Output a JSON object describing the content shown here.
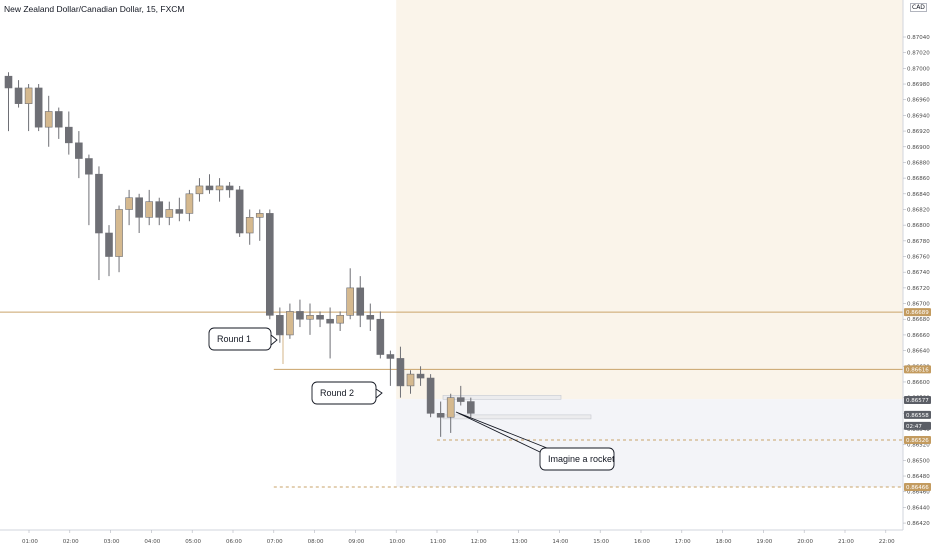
{
  "header": {
    "title": "New Zealand Dollar/Canadian Dollar, 15, FXCM"
  },
  "price_axis": {
    "currency": "CAD"
  },
  "colors": {
    "bull": "#d5b98f",
    "bear": "#6e6f75",
    "wick": "#6e6f75",
    "level": "#c9a36a",
    "zone_upper": "#faf4ea",
    "zone_lower": "#f3f4f8",
    "badge_gold": "#c39b5f",
    "badge_gray": "#5b5e66"
  },
  "chart_data": {
    "type": "candlestick",
    "title": "New Zealand Dollar/Canadian Dollar, 15, FXCM",
    "ylim": [
      0.8641,
      0.8708
    ],
    "y_ticks": [
      "0.87040",
      "0.87020",
      "0.87000",
      "0.86980",
      "0.86960",
      "0.86940",
      "0.86920",
      "0.86900",
      "0.86880",
      "0.86860",
      "0.86840",
      "0.86820",
      "0.86800",
      "0.86780",
      "0.86760",
      "0.86740",
      "0.86720",
      "0.86700",
      "0.86680",
      "0.86660",
      "0.86640",
      "0.86620",
      "0.86600",
      "0.86580",
      "0.86560",
      "0.86540",
      "0.86520",
      "0.86500",
      "0.86480",
      "0.86460",
      "0.86440",
      "0.86420"
    ],
    "x_ticks": [
      "01:00",
      "02:00",
      "03:00",
      "04:00",
      "05:00",
      "06:00",
      "07:00",
      "08:00",
      "09:00",
      "10:00",
      "11:00",
      "12:00",
      "13:00",
      "14:00",
      "15:00",
      "16:00",
      "17:00",
      "18:00",
      "19:00",
      "20:00",
      "21:00",
      "22:00"
    ],
    "candles": [
      {
        "o": 0.8699,
        "h": 0.86995,
        "l": 0.8692,
        "c": 0.86975
      },
      {
        "o": 0.86975,
        "h": 0.86985,
        "l": 0.8695,
        "c": 0.86955
      },
      {
        "o": 0.86955,
        "h": 0.8698,
        "l": 0.8692,
        "c": 0.86975
      },
      {
        "o": 0.86975,
        "h": 0.8698,
        "l": 0.8692,
        "c": 0.86925
      },
      {
        "o": 0.86925,
        "h": 0.86965,
        "l": 0.869,
        "c": 0.86945
      },
      {
        "o": 0.86945,
        "h": 0.8695,
        "l": 0.8691,
        "c": 0.86925
      },
      {
        "o": 0.86925,
        "h": 0.86945,
        "l": 0.8689,
        "c": 0.86905
      },
      {
        "o": 0.86905,
        "h": 0.8692,
        "l": 0.8686,
        "c": 0.86885
      },
      {
        "o": 0.86885,
        "h": 0.8689,
        "l": 0.868,
        "c": 0.86865
      },
      {
        "o": 0.86865,
        "h": 0.86875,
        "l": 0.8673,
        "c": 0.8679
      },
      {
        "o": 0.8679,
        "h": 0.868,
        "l": 0.86735,
        "c": 0.8676
      },
      {
        "o": 0.8676,
        "h": 0.86825,
        "l": 0.8674,
        "c": 0.8682
      },
      {
        "o": 0.8682,
        "h": 0.86845,
        "l": 0.868,
        "c": 0.86835
      },
      {
        "o": 0.86835,
        "h": 0.8684,
        "l": 0.8679,
        "c": 0.8681
      },
      {
        "o": 0.8681,
        "h": 0.86845,
        "l": 0.868,
        "c": 0.8683
      },
      {
        "o": 0.8683,
        "h": 0.86835,
        "l": 0.868,
        "c": 0.8681
      },
      {
        "o": 0.8681,
        "h": 0.8683,
        "l": 0.868,
        "c": 0.8682
      },
      {
        "o": 0.8682,
        "h": 0.86835,
        "l": 0.86805,
        "c": 0.86815
      },
      {
        "o": 0.86815,
        "h": 0.86845,
        "l": 0.86805,
        "c": 0.8684
      },
      {
        "o": 0.8684,
        "h": 0.8686,
        "l": 0.8683,
        "c": 0.8685
      },
      {
        "o": 0.8685,
        "h": 0.86865,
        "l": 0.8684,
        "c": 0.86845
      },
      {
        "o": 0.86845,
        "h": 0.8686,
        "l": 0.8683,
        "c": 0.8685
      },
      {
        "o": 0.8685,
        "h": 0.86855,
        "l": 0.86835,
        "c": 0.86845
      },
      {
        "o": 0.86845,
        "h": 0.8685,
        "l": 0.86785,
        "c": 0.8679
      },
      {
        "o": 0.8679,
        "h": 0.8682,
        "l": 0.86775,
        "c": 0.8681
      },
      {
        "o": 0.8681,
        "h": 0.8682,
        "l": 0.8678,
        "c": 0.86815
      },
      {
        "o": 0.86815,
        "h": 0.8682,
        "l": 0.8668,
        "c": 0.86685
      },
      {
        "o": 0.86685,
        "h": 0.86695,
        "l": 0.8665,
        "c": 0.8666
      },
      {
        "o": 0.8666,
        "h": 0.867,
        "l": 0.86655,
        "c": 0.8669
      },
      {
        "o": 0.8669,
        "h": 0.86705,
        "l": 0.8667,
        "c": 0.8668
      },
      {
        "o": 0.8668,
        "h": 0.867,
        "l": 0.8666,
        "c": 0.86685
      },
      {
        "o": 0.86685,
        "h": 0.8669,
        "l": 0.8667,
        "c": 0.8668
      },
      {
        "o": 0.8668,
        "h": 0.86695,
        "l": 0.8663,
        "c": 0.86675
      },
      {
        "o": 0.86675,
        "h": 0.8669,
        "l": 0.86665,
        "c": 0.86685
      },
      {
        "o": 0.86685,
        "h": 0.86745,
        "l": 0.8668,
        "c": 0.8672
      },
      {
        "o": 0.8672,
        "h": 0.86735,
        "l": 0.8667,
        "c": 0.86685
      },
      {
        "o": 0.86685,
        "h": 0.867,
        "l": 0.86665,
        "c": 0.8668
      },
      {
        "o": 0.8668,
        "h": 0.8669,
        "l": 0.8663,
        "c": 0.86635
      },
      {
        "o": 0.86635,
        "h": 0.8664,
        "l": 0.86595,
        "c": 0.8663
      },
      {
        "o": 0.8663,
        "h": 0.86645,
        "l": 0.8658,
        "c": 0.86595
      },
      {
        "o": 0.86595,
        "h": 0.86615,
        "l": 0.86585,
        "c": 0.8661
      },
      {
        "o": 0.8661,
        "h": 0.8662,
        "l": 0.86595,
        "c": 0.86605
      },
      {
        "o": 0.86605,
        "h": 0.8661,
        "l": 0.86555,
        "c": 0.8656
      },
      {
        "o": 0.8656,
        "h": 0.86575,
        "l": 0.8653,
        "c": 0.86555
      },
      {
        "o": 0.86555,
        "h": 0.86585,
        "l": 0.86535,
        "c": 0.8658
      },
      {
        "o": 0.8658,
        "h": 0.86595,
        "l": 0.8657,
        "c": 0.86575
      },
      {
        "o": 0.86575,
        "h": 0.8658,
        "l": 0.86555,
        "c": 0.8656
      }
    ],
    "horizontal_levels": [
      {
        "price": 0.86689,
        "label": "0.86689",
        "style": "solid",
        "color": "gold",
        "from": "start"
      },
      {
        "price": 0.86616,
        "label": "0.86616",
        "style": "solid",
        "color": "gold",
        "from": "07:00"
      },
      {
        "price": 0.86526,
        "label": "0.86526",
        "style": "dashed",
        "color": "gold",
        "from": "11:00"
      },
      {
        "price": 0.86466,
        "label": "0.86466",
        "style": "dashed",
        "color": "gold",
        "from": "07:00"
      }
    ],
    "axis_badges": [
      {
        "price": 0.86689,
        "label": "0.86689",
        "kind": "gold"
      },
      {
        "price": 0.86616,
        "label": "0.86616",
        "kind": "gold"
      },
      {
        "price": 0.86577,
        "label": "0.86577",
        "kind": "gray"
      },
      {
        "price": 0.86558,
        "label": "0.86558",
        "kind": "gray"
      },
      {
        "price": 0.86544,
        "label": "02:47",
        "kind": "gray"
      },
      {
        "price": 0.86526,
        "label": "0.86526",
        "kind": "gold"
      },
      {
        "price": 0.86466,
        "label": "0.86466",
        "kind": "gold"
      }
    ],
    "annotations": [
      {
        "text": "Round 1",
        "price": 0.86655,
        "time": "06:30",
        "target_price": 0.86655
      },
      {
        "text": "Round 2",
        "price": 0.86578,
        "time": "09:00",
        "target_price": 0.86582
      },
      {
        "text": "Imagine a rocket",
        "price": 0.86498,
        "time": "13:30",
        "target_price": 0.86555
      }
    ],
    "shaded_zones": [
      {
        "from_time": "10:00",
        "price_high": 0.8708,
        "price_low": 0.86578,
        "tone": "upper"
      },
      {
        "from_time": "10:00",
        "price_high": 0.86578,
        "price_low": 0.86466,
        "tone": "lower"
      }
    ]
  }
}
